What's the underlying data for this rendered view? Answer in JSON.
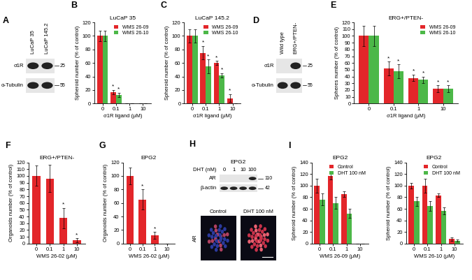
{
  "chart_data": [
    {
      "panel": "B",
      "type": "bar",
      "title": "LuCaP 35",
      "x_label": "σ1R ligand (μM)",
      "y_label": "Spheroid number (% of control)",
      "categories": [
        "0",
        "0.1",
        "1",
        "10"
      ],
      "ylim": [
        0,
        120
      ],
      "yticks": [
        0,
        20,
        40,
        60,
        80,
        100,
        120
      ],
      "legend": "upper right",
      "series": [
        {
          "name": "WMS 26-09",
          "color": "#e3262a",
          "values": [
            100,
            17,
            0,
            0
          ],
          "errors": [
            8,
            3,
            0,
            0
          ],
          "significance": [
            null,
            "*",
            null,
            null
          ]
        },
        {
          "name": "WMS 26-10",
          "color": "#4cb848",
          "values": [
            100,
            13,
            0,
            0
          ],
          "errors": [
            8,
            3,
            0,
            0
          ],
          "significance": [
            null,
            "*",
            null,
            null
          ]
        }
      ]
    },
    {
      "panel": "C",
      "type": "bar",
      "title": "LuCaP 145.2",
      "x_label": "σ1R ligand (μM)",
      "y_label": "Spheroid number (% of control)",
      "categories": [
        "0",
        "0.1",
        "1",
        "10"
      ],
      "ylim": [
        0,
        120
      ],
      "yticks": [
        0,
        20,
        40,
        60,
        80,
        100,
        120
      ],
      "legend": "upper right",
      "series": [
        {
          "name": "WMS 26-09",
          "color": "#e3262a",
          "values": [
            100,
            75,
            60,
            8
          ],
          "errors": [
            10,
            10,
            3,
            6
          ],
          "significance": [
            null,
            "*",
            "*",
            "*"
          ]
        },
        {
          "name": "WMS 26-10",
          "color": "#4cb848",
          "values": [
            100,
            55,
            42,
            0
          ],
          "errors": [
            10,
            10,
            3,
            0
          ],
          "significance": [
            null,
            "*",
            "*",
            null
          ]
        }
      ]
    },
    {
      "panel": "E",
      "type": "bar",
      "title": "ERG+/PTEN-",
      "x_label": "σ1R ligand (μM)",
      "y_label": "Spheres number (% of control)",
      "categories": [
        "0",
        "0.1",
        "1",
        "10"
      ],
      "ylim": [
        0,
        120
      ],
      "yticks": [
        0,
        10,
        20,
        30,
        40,
        50,
        60,
        70,
        80,
        90,
        100,
        110,
        120
      ],
      "legend": "upper right",
      "series": [
        {
          "name": "WMS 26-09",
          "color": "#e3262a",
          "values": [
            100,
            52,
            38,
            22
          ],
          "errors": [
            15,
            10,
            5,
            5
          ],
          "significance": [
            null,
            "*",
            "*",
            "*"
          ]
        },
        {
          "name": "WMS 26-10",
          "color": "#4cb848",
          "values": [
            100,
            48,
            35,
            22
          ],
          "errors": [
            15,
            10,
            5,
            5
          ],
          "significance": [
            null,
            "*",
            "*",
            "*"
          ]
        }
      ]
    },
    {
      "panel": "F",
      "type": "bar",
      "title": "ERG+/PTEN-",
      "x_label": "WMS 26-02 (μM)",
      "y_label": "Organoids number (% of control)",
      "categories": [
        "0",
        "0.1",
        "1",
        "10"
      ],
      "ylim": [
        0,
        120
      ],
      "yticks": [
        0,
        10,
        20,
        30,
        40,
        50,
        60,
        70,
        80,
        90,
        100,
        110,
        120
      ],
      "color": "#e3262a",
      "values": [
        100,
        96,
        38,
        5
      ],
      "errors": [
        15,
        20,
        15,
        3
      ],
      "significance": [
        null,
        null,
        "*",
        "*"
      ]
    },
    {
      "panel": "G",
      "type": "bar",
      "title": "EPG2",
      "x_label": "WMS 26-02 (μM)",
      "y_label": "Organoids number (% of control)",
      "categories": [
        "0",
        "0.1",
        "1",
        "10"
      ],
      "ylim": [
        0,
        120
      ],
      "yticks": [
        0,
        20,
        40,
        60,
        80,
        100,
        120
      ],
      "color": "#e3262a",
      "values": [
        100,
        65,
        12,
        0
      ],
      "errors": [
        12,
        15,
        5,
        0
      ],
      "significance": [
        null,
        "*",
        "*",
        null
      ]
    },
    {
      "panel": "I",
      "type": "bar",
      "title": "EPG2",
      "x_label": "WMS 26-09 (μM)",
      "y_label": "Spheroid number (% of control)",
      "categories": [
        "0",
        "0.1",
        "1",
        "10"
      ],
      "ylim": [
        0,
        140
      ],
      "yticks": [
        0,
        20,
        40,
        60,
        80,
        100,
        120,
        140
      ],
      "legend": "upper right",
      "series": [
        {
          "name": "Control",
          "color": "#e3262a",
          "values": [
            100,
            117,
            85,
            0
          ],
          "errors": [
            12,
            6,
            5,
            0
          ]
        },
        {
          "name": "DHT 100 nM",
          "color": "#4cb848",
          "values": [
            76,
            70,
            52,
            0
          ],
          "errors": [
            10,
            10,
            8,
            0
          ]
        }
      ]
    },
    {
      "type": "bar",
      "title": "EPG2",
      "x_label": "WMS 26-10 (μM)",
      "y_label": "Spheroid number (% of control)",
      "categories": [
        "0",
        "0.1",
        "1",
        "10"
      ],
      "ylim": [
        0,
        140
      ],
      "yticks": [
        0,
        20,
        40,
        60,
        80,
        100,
        120,
        140
      ],
      "legend": "upper right",
      "series": [
        {
          "name": "Control",
          "color": "#e3262a",
          "values": [
            100,
            100,
            83,
            8
          ],
          "errors": [
            5,
            12,
            3,
            3
          ]
        },
        {
          "name": "DHT 100 nM",
          "color": "#4cb848",
          "values": [
            73,
            65,
            57,
            5
          ],
          "errors": [
            8,
            8,
            6,
            2
          ]
        }
      ]
    }
  ],
  "blots": [
    {
      "panel": "A",
      "lanes": [
        "LuCaP 35",
        "LuCaP 145.2"
      ],
      "rows": [
        {
          "label": "σ1R",
          "mw": 25,
          "bands": [
            true,
            true
          ]
        },
        {
          "label": "α-Tubulin",
          "mw": 55,
          "bands": [
            true,
            true
          ]
        }
      ]
    },
    {
      "panel": "D",
      "lanes": [
        "Wild type",
        "ERG+/PTEN-"
      ],
      "rows": [
        {
          "label": "σ1R",
          "mw": 25,
          "bands": [
            false,
            true
          ]
        },
        {
          "label": "α-Tubulin",
          "mw": 55,
          "bands": [
            true,
            true
          ]
        }
      ]
    },
    {
      "panel": "H",
      "title": "EPG2",
      "lane_header": "DHT (nM)",
      "lanes": [
        "0",
        "1",
        "10",
        "100"
      ],
      "rows": [
        {
          "label": "AR",
          "mw": 110,
          "bands": [
            false,
            false,
            false,
            true
          ]
        },
        {
          "label": "β-actin",
          "mw": 42,
          "bands": [
            true,
            true,
            true,
            true
          ]
        }
      ]
    }
  ],
  "microscopy": {
    "images": [
      "Control",
      "DHT 100 nM"
    ],
    "stain": "AR"
  }
}
